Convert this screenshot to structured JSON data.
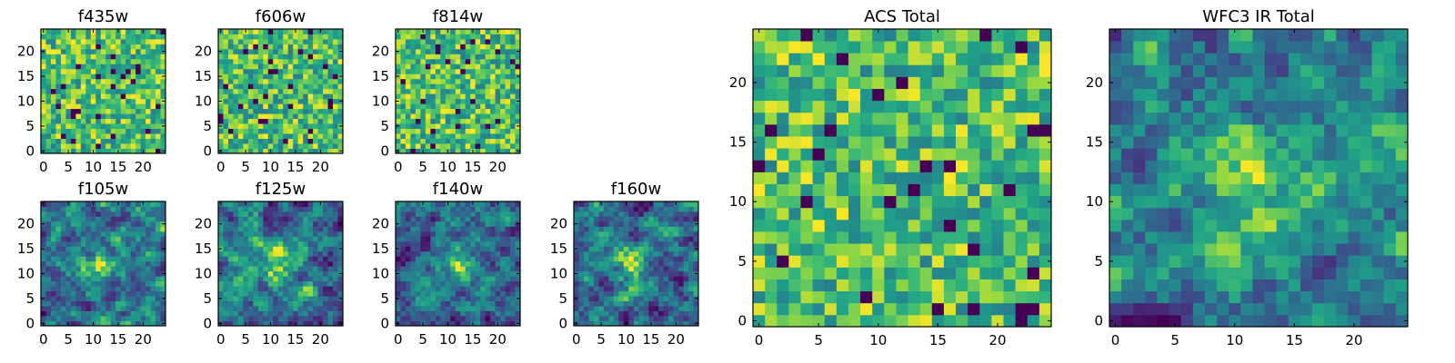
{
  "chart_data": [
    {
      "type": "heatmap",
      "title": "f435w",
      "xlim": [
        0,
        24
      ],
      "ylim": [
        0,
        24
      ],
      "grid_size": 25,
      "xticks": [
        "0",
        "5",
        "10",
        "15",
        "20"
      ],
      "yticks": [
        "0",
        "5",
        "10",
        "15",
        "20"
      ],
      "colormap": "viridis",
      "seed": 11,
      "style": "noise"
    },
    {
      "type": "heatmap",
      "title": "f606w",
      "xlim": [
        0,
        24
      ],
      "ylim": [
        0,
        24
      ],
      "grid_size": 25,
      "xticks": [
        "0",
        "5",
        "10",
        "15",
        "20"
      ],
      "yticks": [
        "0",
        "5",
        "10",
        "15",
        "20"
      ],
      "colormap": "viridis",
      "seed": 23,
      "style": "noise"
    },
    {
      "type": "heatmap",
      "title": "f814w",
      "xlim": [
        0,
        24
      ],
      "ylim": [
        0,
        24
      ],
      "grid_size": 25,
      "xticks": [
        "0",
        "5",
        "10",
        "15",
        "20"
      ],
      "yticks": [
        "0",
        "5",
        "10",
        "15",
        "20"
      ],
      "colormap": "viridis",
      "seed": 37,
      "style": "noise"
    },
    {
      "type": "heatmap",
      "title": "f105w",
      "xlim": [
        0,
        24
      ],
      "ylim": [
        0,
        24
      ],
      "grid_size": 25,
      "xticks": [
        "0",
        "5",
        "10",
        "15",
        "20"
      ],
      "yticks": [
        "0",
        "5",
        "10",
        "15",
        "20"
      ],
      "colormap": "viridis",
      "seed": 41,
      "style": "blob"
    },
    {
      "type": "heatmap",
      "title": "f125w",
      "xlim": [
        0,
        24
      ],
      "ylim": [
        0,
        24
      ],
      "grid_size": 25,
      "xticks": [
        "0",
        "5",
        "10",
        "15",
        "20"
      ],
      "yticks": [
        "0",
        "5",
        "10",
        "15",
        "20"
      ],
      "colormap": "viridis",
      "seed": 53,
      "style": "blob"
    },
    {
      "type": "heatmap",
      "title": "f140w",
      "xlim": [
        0,
        24
      ],
      "ylim": [
        0,
        24
      ],
      "grid_size": 25,
      "xticks": [
        "0",
        "5",
        "10",
        "15",
        "20"
      ],
      "yticks": [
        "0",
        "5",
        "10",
        "15",
        "20"
      ],
      "colormap": "viridis",
      "seed": 67,
      "style": "blob"
    },
    {
      "type": "heatmap",
      "title": "f160w",
      "xlim": [
        0,
        24
      ],
      "ylim": [
        0,
        24
      ],
      "grid_size": 25,
      "xticks": [
        "0",
        "5",
        "10",
        "15",
        "20"
      ],
      "yticks": [
        "0",
        "5",
        "10",
        "15",
        "20"
      ],
      "colormap": "viridis",
      "seed": 71,
      "style": "blob"
    },
    {
      "type": "heatmap",
      "title": "ACS Total",
      "xlim": [
        0,
        24
      ],
      "ylim": [
        0,
        24
      ],
      "grid_size": 25,
      "xticks": [
        "0",
        "5",
        "10",
        "15",
        "20"
      ],
      "yticks": [
        "0",
        "5",
        "10",
        "15",
        "20"
      ],
      "colormap": "viridis",
      "seed": 83,
      "style": "noise"
    },
    {
      "type": "heatmap",
      "title": "WFC3 IR Total",
      "xlim": [
        0,
        24
      ],
      "ylim": [
        0,
        24
      ],
      "grid_size": 25,
      "xticks": [
        "0",
        "5",
        "10",
        "15",
        "20"
      ],
      "yticks": [
        "0",
        "5",
        "10",
        "15",
        "20"
      ],
      "colormap": "viridis",
      "seed": 97,
      "style": "blob"
    }
  ]
}
